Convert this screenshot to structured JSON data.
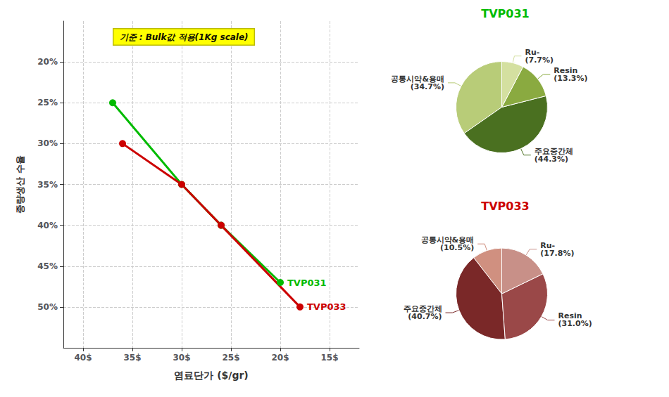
{
  "chart_data": [
    {
      "type": "line",
      "xlabel": "염료단가 ($/gr)",
      "ylabel": "종량생산 수율",
      "annotation": "기준 : Bulk값 적용(1Kg scale)",
      "xlim": [
        42,
        12
      ],
      "ylim": [
        55,
        15
      ],
      "xticks": [
        {
          "value": 40,
          "label": "40$"
        },
        {
          "value": 35,
          "label": "35$"
        },
        {
          "value": 30,
          "label": "30$"
        },
        {
          "value": 25,
          "label": "25$"
        },
        {
          "value": 20,
          "label": "20$"
        },
        {
          "value": 15,
          "label": "15$"
        }
      ],
      "yticks": [
        {
          "value": 20,
          "label": "20%"
        },
        {
          "value": 25,
          "label": "25%"
        },
        {
          "value": 30,
          "label": "30%"
        },
        {
          "value": 35,
          "label": "35%"
        },
        {
          "value": 40,
          "label": "40%"
        },
        {
          "value": 45,
          "label": "45%"
        },
        {
          "value": 50,
          "label": "50%"
        }
      ],
      "grid": true,
      "marker": "circle",
      "series": [
        {
          "name": "TVP031",
          "color": "#00BB00",
          "x": [
            37,
            30,
            26,
            20
          ],
          "values": [
            25,
            35,
            40,
            47
          ]
        },
        {
          "name": "TVP033",
          "color": "#CC0000",
          "x": [
            36,
            30,
            26,
            18
          ],
          "values": [
            30,
            35,
            40,
            50
          ]
        }
      ]
    },
    {
      "type": "pie",
      "title": "TVP031",
      "color": "#00BB00",
      "categories": [
        "공통시약&용매",
        "주요중간체",
        "Resin",
        "Ru-"
      ],
      "values": [
        34.7,
        44.3,
        13.3,
        7.7
      ],
      "value_labels": [
        "(34.7%)",
        "(44.3%)",
        "(13.3%)",
        "(7.7%)"
      ],
      "colors": [
        "#b8cc78",
        "#4a7020",
        "#8aaa40",
        "#d4e0a0"
      ],
      "data_labels": true
    },
    {
      "type": "pie",
      "title": "TVP033",
      "color": "#CC0000",
      "categories": [
        "공통시약&용매",
        "주요중간체",
        "Resin",
        "Ru-"
      ],
      "values": [
        10.5,
        40.7,
        31.0,
        17.8
      ],
      "value_labels": [
        "(10.5%)",
        "(40.7%)",
        "(31.0%)",
        "(17.8%)"
      ],
      "colors": [
        "#d09080",
        "#7a2828",
        "#9a4848",
        "#c89088"
      ],
      "data_labels": true
    }
  ]
}
